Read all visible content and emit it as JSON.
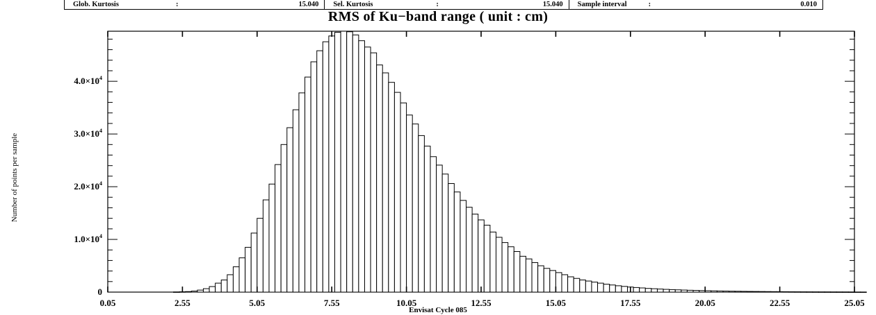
{
  "stats": [
    {
      "label": "Glob. Kurtosis",
      "colon": ":",
      "value": "15.040"
    },
    {
      "label": "Sel. Kurtosis",
      "colon": ":",
      "value": "15.040"
    },
    {
      "label": "Sample interval",
      "colon": ":",
      "value": "0.010"
    }
  ],
  "chart_data": {
    "type": "bar",
    "title": "RMS of Ku−band range  ( unit : cm)",
    "xlabel": "Envisat Cycle 085",
    "ylabel": "Number of points per sample",
    "xlim": [
      0.05,
      25.05
    ],
    "ylim": [
      0,
      49500
    ],
    "x_ticks": [
      "0.05",
      "2.55",
      "5.05",
      "7.55",
      "10.05",
      "12.55",
      "15.05",
      "17.55",
      "20.05",
      "22.55",
      "25.05"
    ],
    "y_ticks": [
      {
        "value": 0,
        "mantissa": "0",
        "exp": ""
      },
      {
        "value": 10000,
        "mantissa": "1.0×10",
        "exp": "4"
      },
      {
        "value": 20000,
        "mantissa": "2.0×10",
        "exp": "4"
      },
      {
        "value": 30000,
        "mantissa": "3.0×10",
        "exp": "4"
      },
      {
        "value": 40000,
        "mantissa": "4.0×10",
        "exp": "4"
      }
    ],
    "bin_start": 2.25,
    "bin_width": 0.2,
    "values": [
      30,
      60,
      100,
      200,
      380,
      650,
      1050,
      1700,
      2300,
      3300,
      4800,
      6500,
      8500,
      11200,
      14000,
      17500,
      20500,
      24200,
      28000,
      31200,
      34600,
      37800,
      40800,
      43700,
      45800,
      47500,
      48600,
      49300,
      49500,
      49400,
      48800,
      47700,
      46500,
      45400,
      43100,
      41600,
      39800,
      37900,
      35900,
      33600,
      31900,
      29700,
      27700,
      25700,
      24100,
      22400,
      20600,
      19000,
      17400,
      16100,
      14800,
      13700,
      12700,
      11400,
      10400,
      9400,
      8600,
      7700,
      6800,
      6300,
      5600,
      5000,
      4500,
      4100,
      3700,
      3300,
      2900,
      2600,
      2300,
      2100,
      1900,
      1700,
      1500,
      1350,
      1200,
      1080,
      960,
      870,
      790,
      700,
      640,
      580,
      520,
      470,
      430,
      390,
      350,
      320,
      290,
      265,
      240,
      215,
      195,
      175,
      160,
      145,
      130,
      120,
      108,
      98,
      88,
      80,
      72,
      65,
      58,
      52,
      47,
      42,
      38,
      35,
      32,
      29,
      26,
      23,
      21,
      19
    ]
  }
}
